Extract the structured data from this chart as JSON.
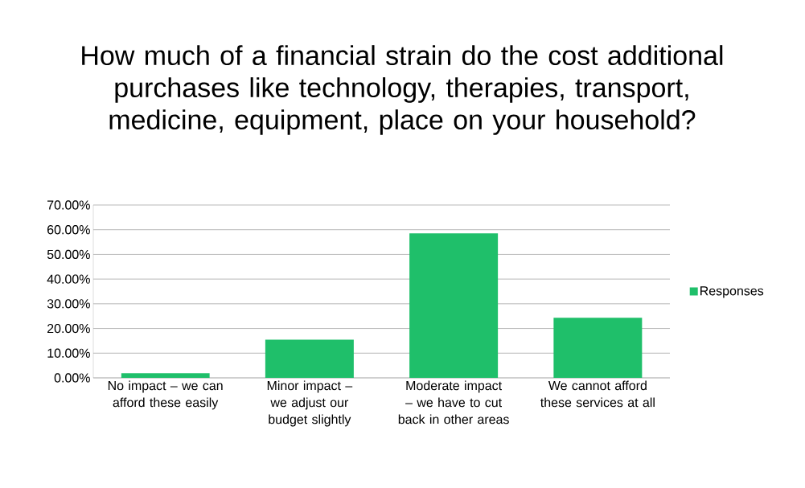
{
  "chart_data": {
    "type": "bar",
    "title": "How much of a financial strain do the cost additional purchases like technology, therapies, transport, medicine, equipment, place on your household?",
    "categories": [
      "No impact – we can afford these easily",
      "Minor impact – we adjust our budget slightly",
      "Moderate impact – we have to cut back in other areas",
      "We cannot afford these services at all"
    ],
    "series": [
      {
        "name": "Responses",
        "color": "#1fbf6a",
        "values": [
          1.9,
          15.5,
          58.5,
          24.3
        ]
      }
    ],
    "ylim": [
      0,
      70
    ],
    "yticks": [
      {
        "value": 0,
        "label": "0.00%"
      },
      {
        "value": 10,
        "label": "10.00%"
      },
      {
        "value": 20,
        "label": "20.00%"
      },
      {
        "value": 30,
        "label": "30.00%"
      },
      {
        "value": 40,
        "label": "40.00%"
      },
      {
        "value": 50,
        "label": "50.00%"
      },
      {
        "value": 60,
        "label": "60.00%"
      },
      {
        "value": 70,
        "label": "70.00%"
      }
    ],
    "grid": "y",
    "legend": "right"
  }
}
